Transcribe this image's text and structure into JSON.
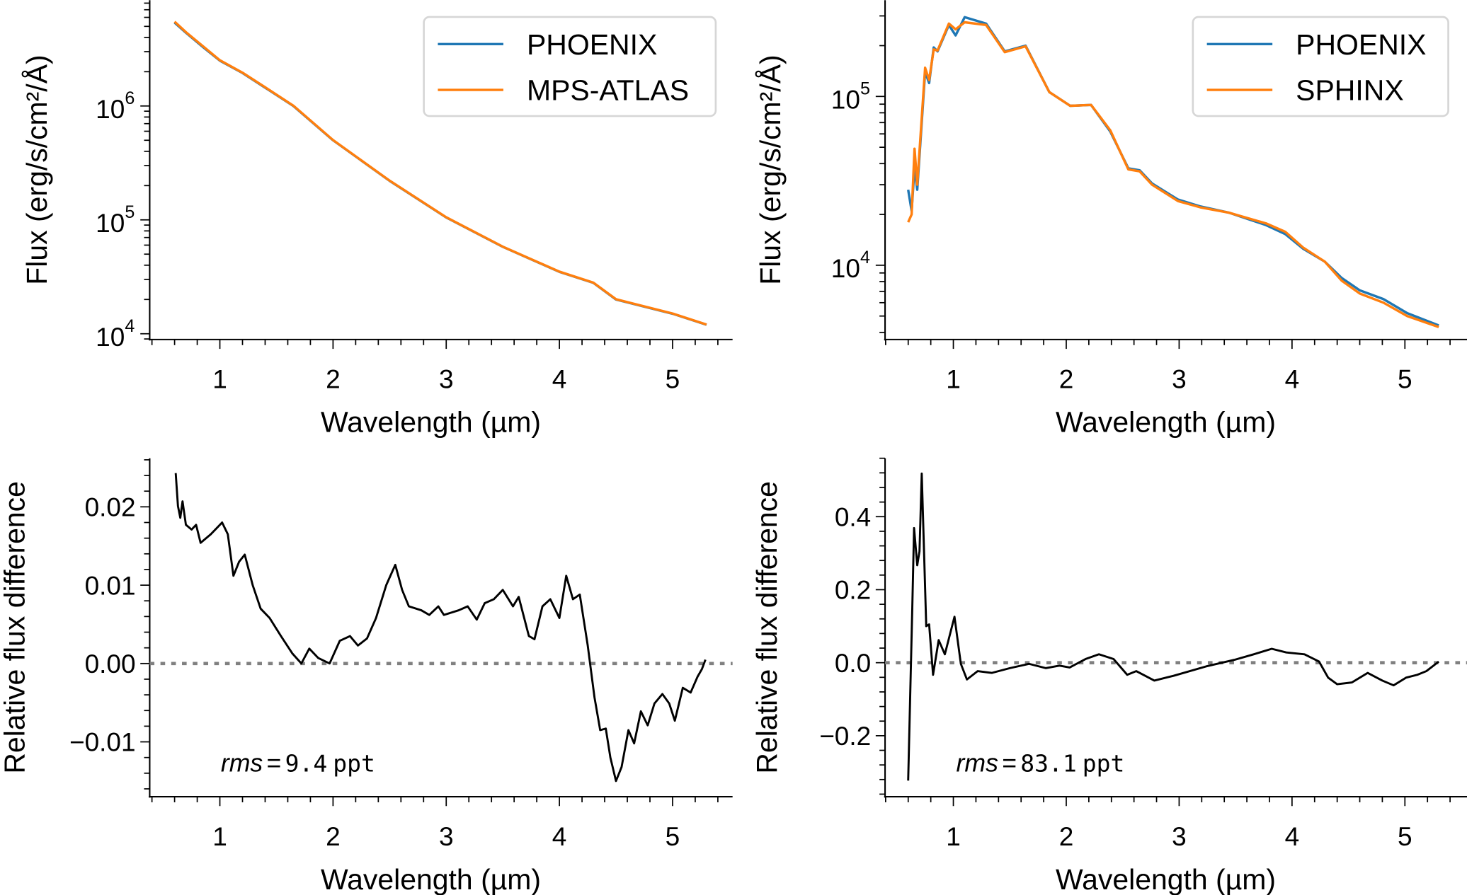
{
  "chart_data": [
    {
      "type": "line",
      "xlabel": "Wavelength (µm)",
      "ylabel": "Flux (erg/s/cm²/Å)",
      "xlim": [
        0.38,
        5.53
      ],
      "ylim": [
        8900,
        8500000
      ],
      "yscale": "log",
      "xticks": [
        1,
        2,
        3,
        4,
        5
      ],
      "xtick_labels": [
        "1",
        "2",
        "3",
        "4",
        "5"
      ],
      "yticks": [
        10000,
        100000,
        1000000
      ],
      "ytick_labels": [
        {
          "base": "10",
          "exp": "4"
        },
        {
          "base": "10",
          "exp": "5"
        },
        {
          "base": "10",
          "exp": "6"
        }
      ],
      "legend": {
        "placement": "top-right",
        "entries": [
          "PHOENIX",
          "MPS-ATLAS"
        ]
      },
      "series": [
        {
          "name": "PHOENIX",
          "color": "#1f77b4",
          "x": [
            0.6,
            0.7,
            0.85,
            1.0,
            1.2,
            1.4,
            1.65,
            2.0,
            2.5,
            3.0,
            3.5,
            4.0,
            4.3,
            4.5,
            5.0,
            5.3
          ],
          "y": [
            5400000,
            4400000,
            3300000,
            2500000,
            1950000,
            1450000,
            1000000,
            500000,
            220000,
            105000,
            58000,
            35000,
            28000,
            20000,
            15000,
            12000
          ]
        },
        {
          "name": "MPS-ATLAS",
          "color": "#ff7f0e",
          "x": [
            0.6,
            0.7,
            0.85,
            1.0,
            1.2,
            1.4,
            1.65,
            2.0,
            2.5,
            3.0,
            3.5,
            4.0,
            4.3,
            4.5,
            5.0,
            5.3
          ],
          "y": [
            5500000,
            4450000,
            3350000,
            2520000,
            1960000,
            1460000,
            1005000,
            502000,
            221000,
            105500,
            58200,
            35100,
            28100,
            20100,
            15050,
            12050
          ]
        }
      ]
    },
    {
      "type": "line",
      "xlabel": "Wavelength (µm)",
      "ylabel": "Flux (erg/s/cm²/Å)",
      "xlim": [
        0.395,
        5.55
      ],
      "ylim": [
        3630,
        372000
      ],
      "yscale": "log",
      "xticks": [
        1,
        2,
        3,
        4,
        5
      ],
      "xtick_labels": [
        "1",
        "2",
        "3",
        "4",
        "5"
      ],
      "yticks": [
        10000,
        100000
      ],
      "ytick_labels": [
        {
          "base": "10",
          "exp": "4"
        },
        {
          "base": "10",
          "exp": "5"
        }
      ],
      "legend": {
        "placement": "top-right",
        "entries": [
          "PHOENIX",
          "SPHINX"
        ]
      },
      "series": [
        {
          "name": "PHOENIX",
          "color": "#1f77b4",
          "x": [
            0.6,
            0.63,
            0.656,
            0.68,
            0.75,
            0.785,
            0.826,
            0.86,
            0.96,
            1.02,
            1.1,
            1.29,
            1.455,
            1.64,
            1.85,
            2.035,
            2.22,
            2.39,
            2.55,
            2.65,
            2.76,
            2.99,
            3.19,
            3.44,
            3.77,
            3.94,
            4.1,
            4.29,
            4.44,
            4.6,
            4.81,
            5.02,
            5.3
          ],
          "y": [
            28000,
            21000,
            38000,
            28000,
            140000,
            120000,
            195000,
            185000,
            265000,
            230000,
            295000,
            270000,
            185000,
            200000,
            106000,
            88000,
            89000,
            62000,
            37500,
            36500,
            30500,
            24500,
            22300,
            20500,
            17300,
            15300,
            12500,
            10500,
            8400,
            7100,
            6300,
            5200,
            4400
          ]
        },
        {
          "name": "SPHINX",
          "color": "#ff7f0e",
          "x": [
            0.6,
            0.63,
            0.656,
            0.68,
            0.75,
            0.785,
            0.826,
            0.86,
            0.96,
            1.02,
            1.1,
            1.29,
            1.455,
            1.64,
            1.85,
            2.035,
            2.22,
            2.39,
            2.55,
            2.65,
            2.76,
            2.99,
            3.19,
            3.44,
            3.77,
            3.94,
            4.1,
            4.29,
            4.44,
            4.6,
            4.81,
            5.02,
            5.3
          ],
          "y": [
            18000,
            20000,
            49000,
            30000,
            148000,
            125000,
            190000,
            187000,
            270000,
            250000,
            275000,
            265000,
            183000,
            198000,
            106000,
            88000,
            89000,
            63000,
            37000,
            36000,
            30000,
            24000,
            22000,
            20500,
            17700,
            15800,
            12700,
            10500,
            8100,
            6800,
            6000,
            5000,
            4300
          ]
        }
      ]
    },
    {
      "type": "line",
      "xlabel": "Wavelength (µm)",
      "ylabel": "Relative flux difference",
      "xlim": [
        0.38,
        5.53
      ],
      "ylim": [
        -0.017,
        0.0262
      ],
      "yscale": "linear",
      "xticks": [
        1,
        2,
        3,
        4,
        5
      ],
      "xtick_labels": [
        "1",
        "2",
        "3",
        "4",
        "5"
      ],
      "yticks": [
        -0.01,
        0.0,
        0.01,
        0.02
      ],
      "ytick_labels": [
        "−0.01",
        "0.00",
        "0.01",
        "0.02"
      ],
      "reference_line": {
        "y": 0,
        "style": "dotted",
        "color": "#808080"
      },
      "annotation": {
        "label": "rms",
        "equals": "=",
        "value": "9.4",
        "unit": "ppt"
      },
      "series": [
        {
          "color": "#000000",
          "x": [
            0.61,
            0.63,
            0.65,
            0.67,
            0.7,
            0.75,
            0.79,
            0.83,
            0.92,
            0.98,
            1.02,
            1.07,
            1.12,
            1.17,
            1.22,
            1.29,
            1.36,
            1.44,
            1.54,
            1.64,
            1.72,
            1.79,
            1.87,
            1.97,
            2.06,
            2.15,
            2.22,
            2.3,
            2.38,
            2.47,
            2.55,
            2.61,
            2.67,
            2.78,
            2.85,
            2.93,
            2.98,
            3.11,
            3.19,
            3.27,
            3.34,
            3.42,
            3.5,
            3.59,
            3.64,
            3.73,
            3.78,
            3.85,
            3.92,
            4.0,
            4.06,
            4.12,
            4.18,
            4.25,
            4.31,
            4.36,
            4.41,
            4.45,
            4.5,
            4.55,
            4.61,
            4.66,
            4.72,
            4.78,
            4.84,
            4.91,
            4.97,
            5.02,
            5.09,
            5.16,
            5.22,
            5.26,
            5.29
          ],
          "y": [
            0.0243,
            0.0201,
            0.0186,
            0.0207,
            0.0177,
            0.0171,
            0.0177,
            0.0154,
            0.0165,
            0.0174,
            0.018,
            0.0165,
            0.0112,
            0.013,
            0.0139,
            0.01,
            0.007,
            0.0058,
            0.0035,
            0.0013,
            0.0,
            0.0019,
            0.0007,
            0.0,
            0.0029,
            0.0035,
            0.0023,
            0.0032,
            0.0058,
            0.01,
            0.0126,
            0.0094,
            0.0073,
            0.0068,
            0.0062,
            0.0073,
            0.0062,
            0.0068,
            0.0073,
            0.0056,
            0.0077,
            0.0082,
            0.0094,
            0.0073,
            0.0085,
            0.0035,
            0.0031,
            0.0073,
            0.0082,
            0.0058,
            0.0112,
            0.0082,
            0.0088,
            0.0023,
            -0.0043,
            -0.0085,
            -0.0083,
            -0.012,
            -0.015,
            -0.0132,
            -0.0085,
            -0.0102,
            -0.0061,
            -0.0079,
            -0.0051,
            -0.0039,
            -0.0051,
            -0.0073,
            -0.0031,
            -0.0037,
            -0.0017,
            -0.0007,
            0.0005
          ]
        }
      ]
    },
    {
      "type": "line",
      "xlabel": "Wavelength (µm)",
      "ylabel": "Relative flux difference",
      "xlim": [
        0.395,
        5.55
      ],
      "ylim": [
        -0.367,
        0.56
      ],
      "yscale": "linear",
      "xticks": [
        1,
        2,
        3,
        4,
        5
      ],
      "xtick_labels": [
        "1",
        "2",
        "3",
        "4",
        "5"
      ],
      "yticks": [
        -0.2,
        0.0,
        0.2,
        0.4
      ],
      "ytick_labels": [
        "−0.2",
        "0.0",
        "0.2",
        "0.4"
      ],
      "reference_line": {
        "y": 0,
        "style": "dotted",
        "color": "#808080"
      },
      "annotation": {
        "label": "rms",
        "equals": "=",
        "value": "83.1",
        "unit": "ppt"
      },
      "series": [
        {
          "color": "#000000",
          "x": [
            0.6,
            0.636,
            0.652,
            0.68,
            0.7,
            0.72,
            0.76,
            0.785,
            0.82,
            0.87,
            0.925,
            1.01,
            1.066,
            1.12,
            1.215,
            1.34,
            1.5,
            1.67,
            1.82,
            1.94,
            2.03,
            2.17,
            2.29,
            2.42,
            2.54,
            2.62,
            2.78,
            2.95,
            3.24,
            3.49,
            3.66,
            3.82,
            3.95,
            4.11,
            4.24,
            4.32,
            4.4,
            4.53,
            4.67,
            4.8,
            4.9,
            5.01,
            5.11,
            5.19,
            5.3
          ],
          "y": [
            -0.323,
            0.151,
            0.369,
            0.267,
            0.305,
            0.518,
            0.1,
            0.105,
            -0.033,
            0.062,
            0.023,
            0.126,
            -0.003,
            -0.046,
            -0.023,
            -0.028,
            -0.015,
            -0.003,
            -0.015,
            -0.008,
            -0.013,
            0.01,
            0.023,
            0.01,
            -0.033,
            -0.023,
            -0.049,
            -0.036,
            -0.01,
            0.008,
            0.023,
            0.038,
            0.028,
            0.023,
            0.003,
            -0.041,
            -0.059,
            -0.054,
            -0.028,
            -0.049,
            -0.062,
            -0.041,
            -0.033,
            -0.023,
            0.003
          ]
        }
      ]
    }
  ]
}
